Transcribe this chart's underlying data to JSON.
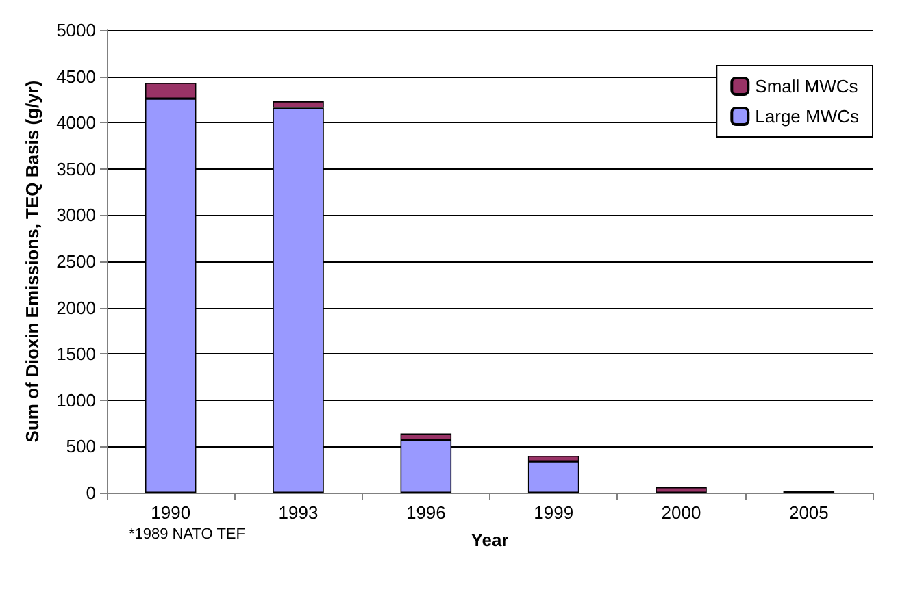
{
  "chart_data": {
    "type": "bar",
    "stacked": true,
    "xlabel": "Year",
    "ylabel": "Sum of Dioxin Emissions, TEQ Basis (g/yr)",
    "categories": [
      "1990",
      "1993",
      "1996",
      "1999",
      "2000",
      "2005"
    ],
    "series": [
      {
        "name": "Large MWCs",
        "color": "#9999ff",
        "values": [
          4260,
          4160,
          570,
          340,
          null,
          null
        ]
      },
      {
        "name": "Small MWCs",
        "color": "#993366",
        "values": [
          170,
          70,
          70,
          60,
          60,
          20
        ]
      }
    ],
    "ylim": [
      0,
      5000
    ],
    "yticks": [
      0,
      500,
      1000,
      1500,
      2000,
      2500,
      3000,
      3500,
      4000,
      4500,
      5000
    ],
    "grid": "y",
    "legend": "top right",
    "annotations": [
      "*1989 NATO TEF"
    ]
  }
}
